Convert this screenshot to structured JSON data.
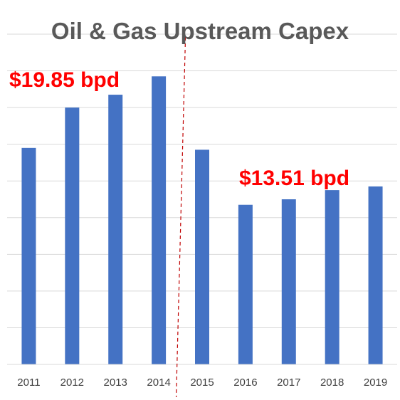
{
  "chart_data": {
    "type": "bar",
    "title": "Oil & Gas Upstream Capex",
    "xlabel": "",
    "ylabel": "",
    "categories": [
      "2011",
      "2012",
      "2013",
      "2014",
      "2015",
      "2016",
      "2017",
      "2018",
      "2019"
    ],
    "values": [
      5.9,
      7.0,
      7.35,
      7.85,
      5.85,
      4.35,
      4.5,
      4.75,
      4.85
    ],
    "ylim": [
      0,
      9
    ],
    "grid": true,
    "legend": "none",
    "colors": {
      "bar": "#4472c4",
      "annotation": "#ff0000",
      "divider": "#c00000"
    },
    "annotations": [
      {
        "text": "$19.85 bpd",
        "period": "2011-2014"
      },
      {
        "text": "$13.51 bpd",
        "period": "2015-2019"
      }
    ],
    "divider_between": [
      "2014",
      "2015"
    ]
  }
}
